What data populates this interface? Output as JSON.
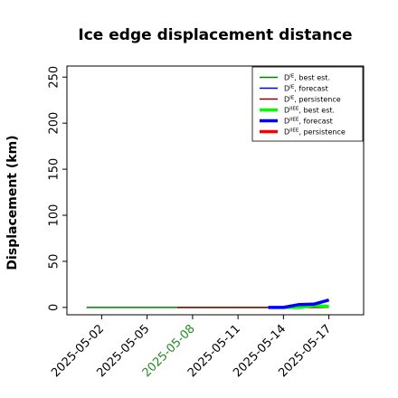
{
  "chart_data": {
    "type": "line",
    "title": "Ice edge displacement distance",
    "xlabel": "",
    "ylabel": "Displacement (km)",
    "ylim": [
      -8,
      262
    ],
    "xlim": [
      "2025-04-29T17:00",
      "2025-05-19T07:00"
    ],
    "yticks": [
      "0",
      "50",
      "100",
      "150",
      "200",
      "250"
    ],
    "xticks": [
      {
        "date": "2025-05-02",
        "label": "2025-05-02",
        "color": "#000000"
      },
      {
        "date": "2025-05-05",
        "label": "2025-05-05",
        "color": "#000000"
      },
      {
        "date": "2025-05-08",
        "label": "2025-05-08",
        "color": "#228B22"
      },
      {
        "date": "2025-05-11",
        "label": "2025-05-11",
        "color": "#000000"
      },
      {
        "date": "2025-05-14",
        "label": "2025-05-14",
        "color": "#000000"
      },
      {
        "date": "2025-05-17",
        "label": "2025-05-17",
        "color": "#000000"
      }
    ],
    "legend_position": "top-right",
    "grid": false,
    "series": [
      {
        "name_main": "D",
        "name_sup": "IE",
        "name_suffix": ", best est.",
        "color": "#008000",
        "width": "thin",
        "points": [
          [
            "2025-05-01",
            0
          ],
          [
            "2025-05-08",
            0
          ],
          [
            "2025-05-14",
            0
          ]
        ]
      },
      {
        "name_main": "D",
        "name_sup": "IE",
        "name_suffix": ", forecast",
        "color": "#0000ff",
        "width": "thin",
        "points": [
          [
            "2025-05-13",
            0
          ],
          [
            "2025-05-14",
            0
          ],
          [
            "2025-05-15",
            2
          ],
          [
            "2025-05-16",
            3
          ],
          [
            "2025-05-17",
            8
          ]
        ]
      },
      {
        "name_main": "D",
        "name_sup": "IE",
        "name_suffix": ", persistence",
        "color": "#8b0000",
        "width": "thin",
        "points": [
          [
            "2025-05-07",
            0
          ],
          [
            "2025-05-17",
            0
          ]
        ]
      },
      {
        "name_main": "D",
        "name_sup": "IIEE",
        "name_suffix": ", best est.",
        "color": "#00ff00",
        "width": "thick",
        "points": [
          [
            "2025-05-14",
            0
          ],
          [
            "2025-05-15",
            0
          ],
          [
            "2025-05-16",
            2
          ],
          [
            "2025-05-17",
            1
          ]
        ]
      },
      {
        "name_main": "D",
        "name_sup": "IIEE",
        "name_suffix": ", forecast",
        "color": "#0000ff",
        "width": "thick",
        "points": [
          [
            "2025-05-13",
            0
          ],
          [
            "2025-05-14",
            0
          ],
          [
            "2025-05-15",
            3
          ],
          [
            "2025-05-16",
            3.5
          ],
          [
            "2025-05-17",
            8
          ]
        ]
      },
      {
        "name_main": "D",
        "name_sup": "IIEE",
        "name_suffix": ", persistence",
        "color": "#ff0000",
        "width": "thick",
        "points": []
      }
    ]
  }
}
